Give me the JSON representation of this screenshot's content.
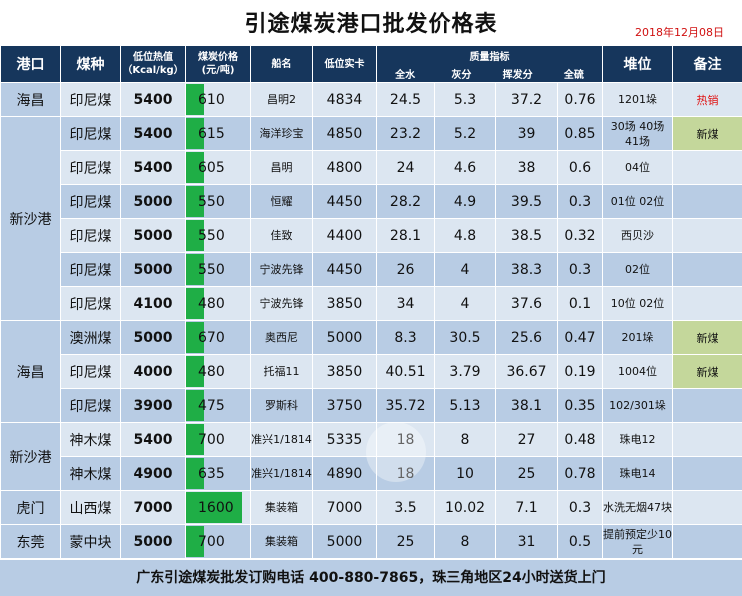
{
  "title": "引途煤炭港口批发价格表",
  "date": "2018年12月08日",
  "headers": {
    "port": "港口",
    "coal": "煤种",
    "heat_line1": "低位热值",
    "heat_line2": "（Kcal/kg）",
    "price_line1": "煤炭价格",
    "price_line2": "(元/吨)",
    "ship": "船名",
    "lowcard": "低位实卡",
    "quality": "质量指标",
    "water": "全水",
    "ash": "灰分",
    "volatile": "挥发分",
    "sulfur": "全硫",
    "position": "堆位",
    "note": "备注"
  },
  "price_scale_max": 1600,
  "rows": [
    {
      "port": "海昌",
      "coal": "印尼煤",
      "heat": "5400",
      "price": "610",
      "price_num": 610,
      "ship": "昌明2",
      "lowcard": "4834",
      "water": "24.5",
      "ash": "5.3",
      "volatile": "37.2",
      "sulfur": "0.76",
      "position": "1201垛",
      "note": "热销",
      "note_type": "hot"
    },
    {
      "port": "新沙港",
      "coal": "印尼煤",
      "heat": "5400",
      "price": "615",
      "price_num": 615,
      "ship": "海洋珍宝",
      "lowcard": "4850",
      "water": "23.2",
      "ash": "5.2",
      "volatile": "39",
      "sulfur": "0.85",
      "position": "30场 40场 41场",
      "note": "新煤",
      "note_type": "new"
    },
    {
      "port": "",
      "coal": "印尼煤",
      "heat": "5400",
      "price": "605",
      "price_num": 605,
      "ship": "昌明",
      "lowcard": "4800",
      "water": "24",
      "ash": "4.6",
      "volatile": "38",
      "sulfur": "0.6",
      "position": "04位",
      "note": "",
      "note_type": ""
    },
    {
      "port": "",
      "coal": "印尼煤",
      "heat": "5000",
      "price": "550",
      "price_num": 550,
      "ship": "恒耀",
      "lowcard": "4450",
      "water": "28.2",
      "ash": "4.9",
      "volatile": "39.5",
      "sulfur": "0.3",
      "position": "01位 02位",
      "note": "",
      "note_type": ""
    },
    {
      "port": "",
      "coal": "印尼煤",
      "heat": "5000",
      "price": "550",
      "price_num": 550,
      "ship": "佳致",
      "lowcard": "4400",
      "water": "28.1",
      "ash": "4.8",
      "volatile": "38.5",
      "sulfur": "0.32",
      "position": "西贝沙",
      "note": "",
      "note_type": ""
    },
    {
      "port": "",
      "coal": "印尼煤",
      "heat": "5000",
      "price": "550",
      "price_num": 550,
      "ship": "宁波先锋",
      "lowcard": "4450",
      "water": "26",
      "ash": "4",
      "volatile": "38.3",
      "sulfur": "0.3",
      "position": "02位",
      "note": "",
      "note_type": ""
    },
    {
      "port": "",
      "coal": "印尼煤",
      "heat": "4100",
      "price": "480",
      "price_num": 480,
      "ship": "宁波先锋",
      "lowcard": "3850",
      "water": "34",
      "ash": "4",
      "volatile": "37.6",
      "sulfur": "0.1",
      "position": "10位 02位",
      "note": "",
      "note_type": ""
    },
    {
      "port": "海昌",
      "coal": "澳洲煤",
      "heat": "5000",
      "price": "670",
      "price_num": 670,
      "ship": "奥西尼",
      "lowcard": "5000",
      "water": "8.3",
      "ash": "30.5",
      "volatile": "25.6",
      "sulfur": "0.47",
      "position": "201垛",
      "note": "新煤",
      "note_type": "new"
    },
    {
      "port": "",
      "coal": "印尼煤",
      "heat": "4000",
      "price": "480",
      "price_num": 480,
      "ship": "托福11",
      "lowcard": "3850",
      "water": "40.51",
      "ash": "3.79",
      "volatile": "36.67",
      "sulfur": "0.19",
      "position": "1004位",
      "note": "新煤",
      "note_type": "new"
    },
    {
      "port": "",
      "coal": "印尼煤",
      "heat": "3900",
      "price": "475",
      "price_num": 475,
      "ship": "罗斯科",
      "lowcard": "3750",
      "water": "35.72",
      "ash": "5.13",
      "volatile": "38.1",
      "sulfur": "0.35",
      "position": "102/301垛",
      "note": "",
      "note_type": ""
    },
    {
      "port": "新沙港",
      "coal": "神木煤",
      "heat": "5400",
      "price": "700",
      "price_num": 700,
      "ship": "准兴1/1814",
      "lowcard": "5335",
      "water": "18",
      "ash": "8",
      "volatile": "27",
      "sulfur": "0.48",
      "position": "珠电12",
      "note": "",
      "note_type": ""
    },
    {
      "port": "",
      "coal": "神木煤",
      "heat": "4900",
      "price": "635",
      "price_num": 635,
      "ship": "准兴1/1814",
      "lowcard": "4890",
      "water": "18",
      "ash": "10",
      "volatile": "25",
      "sulfur": "0.78",
      "position": "珠电14",
      "note": "",
      "note_type": ""
    },
    {
      "port": "虎门",
      "coal": "山西煤",
      "heat": "7000",
      "price": "1600",
      "price_num": 1600,
      "ship": "集装箱",
      "lowcard": "7000",
      "water": "3.5",
      "ash": "10.02",
      "volatile": "7.1",
      "sulfur": "0.3",
      "position": "水洗无烟47块",
      "note": "",
      "note_type": ""
    },
    {
      "port": "东莞",
      "coal": "蒙中块",
      "heat": "5000",
      "price": "700",
      "price_num": 700,
      "ship": "集装箱",
      "lowcard": "5000",
      "water": "25",
      "ash": "8",
      "volatile": "31",
      "sulfur": "0.5",
      "position": "提前预定少10元",
      "note": "",
      "note_type": ""
    }
  ],
  "footer": "广东引途煤炭批发订购电话 400-880-7865，珠三角地区24小时送货上门",
  "colors": {
    "header_bg": "#16365c",
    "row_light": "#dce6f1",
    "row_dark": "#b8cce4",
    "bar": "#1fae46",
    "note_new": "#c4d79b",
    "hot_text": "#e01010"
  }
}
